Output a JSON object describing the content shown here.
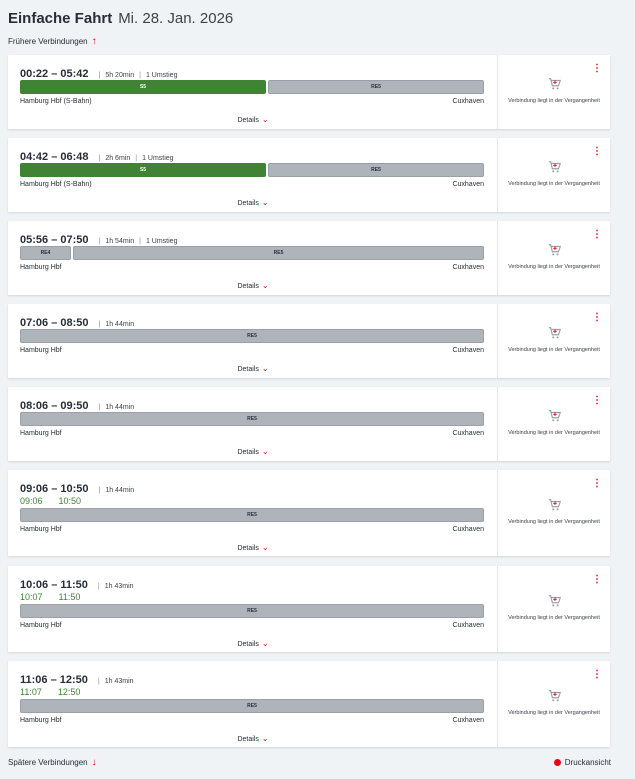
{
  "header": {
    "title": "Einfache Fahrt",
    "date": "Mi. 28. Jan. 2026"
  },
  "earlier_label": "Frühere Verbindungen",
  "later_label": "Spätere Verbindungen",
  "print_label": "Druckansicht",
  "details_label": "Details",
  "past_notice": "Verbindung liegt in der Vergangenheit",
  "colors": {
    "accent": "#ec0016",
    "sbahn": "#408335",
    "regional": "#afb4bb",
    "realtime": "#408335"
  },
  "connections": [
    {
      "range": "00:22 – 05:42",
      "duration": "5h 20min",
      "transfers": "1 Umstieg",
      "rt_dep": "",
      "rt_arr": "",
      "segments": [
        {
          "label": "S5",
          "color": "green"
        },
        {
          "label": "RE5",
          "color": "gray"
        }
      ],
      "from": "Hamburg Hbf (S-Bahn)",
      "to": "Cuxhaven"
    },
    {
      "range": "04:42 – 06:48",
      "duration": "2h 6min",
      "transfers": "1 Umstieg",
      "rt_dep": "",
      "rt_arr": "",
      "segments": [
        {
          "label": "S5",
          "color": "green"
        },
        {
          "label": "RE5",
          "color": "gray"
        }
      ],
      "from": "Hamburg Hbf (S-Bahn)",
      "to": "Cuxhaven"
    },
    {
      "range": "05:56 – 07:50",
      "duration": "1h 54min",
      "transfers": "1 Umstieg",
      "rt_dep": "",
      "rt_arr": "",
      "segments": [
        {
          "label": "RE4",
          "color": "gray"
        },
        {
          "label": "RE5",
          "color": "gray"
        }
      ],
      "from": "Hamburg Hbf",
      "to": "Cuxhaven"
    },
    {
      "range": "07:06 – 08:50",
      "duration": "1h 44min",
      "transfers": "",
      "rt_dep": "",
      "rt_arr": "",
      "segments": [
        {
          "label": "RE5",
          "color": "gray"
        }
      ],
      "from": "Hamburg Hbf",
      "to": "Cuxhaven"
    },
    {
      "range": "08:06 – 09:50",
      "duration": "1h 44min",
      "transfers": "",
      "rt_dep": "",
      "rt_arr": "",
      "segments": [
        {
          "label": "RE5",
          "color": "gray"
        }
      ],
      "from": "Hamburg Hbf",
      "to": "Cuxhaven"
    },
    {
      "range": "09:06 – 10:50",
      "duration": "1h 44min",
      "transfers": "",
      "rt_dep": "09:06",
      "rt_arr": "10:50",
      "segments": [
        {
          "label": "RE5",
          "color": "gray"
        }
      ],
      "from": "Hamburg Hbf",
      "to": "Cuxhaven"
    },
    {
      "range": "10:06 – 11:50",
      "duration": "1h 43min",
      "transfers": "",
      "rt_dep": "10:07",
      "rt_arr": "11:50",
      "segments": [
        {
          "label": "RE5",
          "color": "gray"
        }
      ],
      "from": "Hamburg Hbf",
      "to": "Cuxhaven"
    },
    {
      "range": "11:06 – 12:50",
      "duration": "1h 43min",
      "transfers": "",
      "rt_dep": "11:07",
      "rt_arr": "12:50",
      "segments": [
        {
          "label": "RE5",
          "color": "gray"
        }
      ],
      "from": "Hamburg Hbf",
      "to": "Cuxhaven"
    }
  ]
}
